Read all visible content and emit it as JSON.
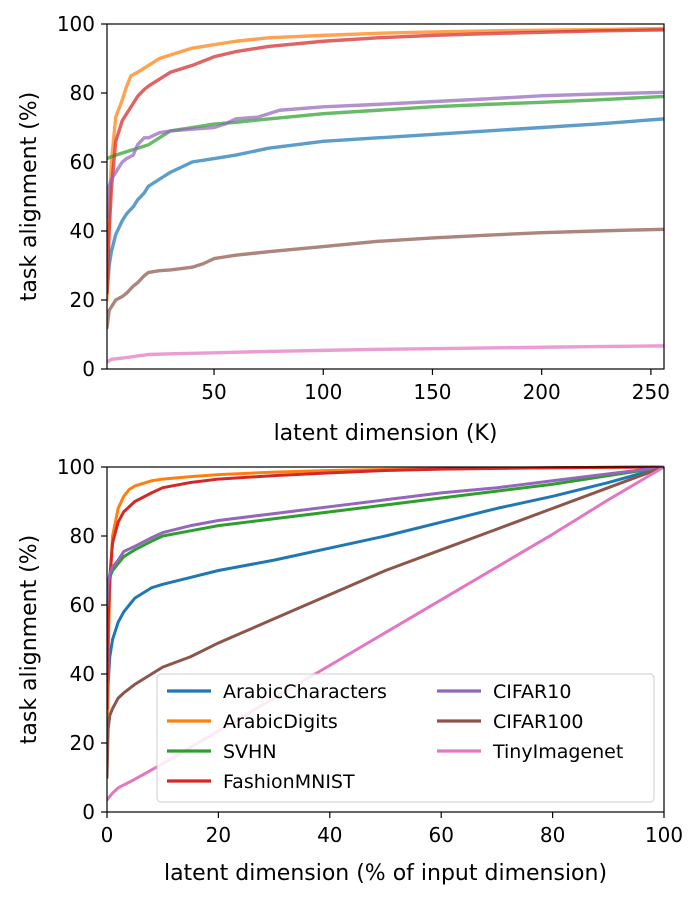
{
  "chart_data": [
    {
      "type": "line",
      "xlabel": "latent dimension (K)",
      "ylabel": "task alignment (%)",
      "xlim": [
        1,
        256
      ],
      "ylim": [
        0,
        100
      ],
      "xticks": [
        50,
        100,
        150,
        200,
        250
      ],
      "yticks": [
        0,
        20,
        40,
        60,
        80,
        100
      ],
      "legend": null,
      "series": [
        {
          "name": "ArabicCharacters",
          "color": "#1f77b4",
          "x": [
            1,
            2,
            3,
            5,
            8,
            10,
            13,
            15,
            18,
            20,
            25,
            30,
            40,
            50,
            60,
            75,
            100,
            125,
            150,
            175,
            200,
            225,
            256
          ],
          "y": [
            22,
            30,
            34,
            39,
            43,
            45,
            47,
            49,
            51,
            53,
            55,
            57,
            60,
            61,
            62,
            64,
            66,
            67,
            68,
            69,
            70,
            71,
            72.5
          ]
        },
        {
          "name": "ArabicDigits",
          "color": "#ff7f0e",
          "x": [
            1,
            2,
            3,
            5,
            8,
            10,
            12,
            15,
            20,
            25,
            30,
            40,
            50,
            60,
            75,
            100,
            125,
            150,
            175,
            200,
            225,
            256
          ],
          "y": [
            20,
            45,
            60,
            73,
            78,
            82,
            85,
            86,
            88,
            90,
            91,
            93,
            94,
            95,
            96,
            96.7,
            97.3,
            97.7,
            98,
            98.2,
            98.4,
            98.7
          ]
        },
        {
          "name": "SVHN",
          "color": "#2ca02c",
          "x": [
            1,
            5,
            10,
            15,
            20,
            25,
            30,
            40,
            50,
            60,
            75,
            100,
            125,
            150,
            175,
            200,
            225,
            256
          ],
          "y": [
            61,
            62,
            63,
            64,
            65,
            67,
            69,
            70,
            71,
            71.5,
            72.5,
            74,
            75,
            76,
            76.7,
            77.3,
            78,
            79
          ]
        },
        {
          "name": "FashionMNIST",
          "color": "#d62728",
          "x": [
            1,
            2,
            3,
            5,
            8,
            10,
            13,
            15,
            18,
            20,
            25,
            30,
            40,
            50,
            60,
            75,
            100,
            125,
            150,
            175,
            200,
            225,
            256
          ],
          "y": [
            22,
            40,
            52,
            66,
            72,
            74,
            77,
            79,
            81,
            82,
            84,
            86,
            88,
            90.5,
            92,
            93.5,
            95,
            96,
            96.7,
            97.2,
            97.6,
            98,
            98.3
          ]
        },
        {
          "name": "CIFAR10",
          "color": "#9467bd",
          "x": [
            1,
            2,
            3,
            5,
            8,
            10,
            13,
            15,
            18,
            20,
            25,
            30,
            40,
            50,
            55,
            60,
            70,
            75,
            80,
            100,
            125,
            150,
            175,
            200,
            225,
            256
          ],
          "y": [
            44,
            53,
            55,
            57,
            60,
            61,
            62,
            65,
            67,
            67,
            68.5,
            69,
            69.5,
            70,
            71,
            72.5,
            73,
            74,
            75,
            76,
            76.7,
            77.5,
            78.3,
            79.2,
            79.7,
            80.2
          ]
        },
        {
          "name": "CIFAR100",
          "color": "#8c564b",
          "x": [
            1,
            2,
            3,
            5,
            8,
            10,
            13,
            15,
            18,
            20,
            25,
            30,
            40,
            45,
            50,
            55,
            60,
            75,
            100,
            125,
            150,
            175,
            200,
            225,
            256
          ],
          "y": [
            12,
            17,
            18,
            20,
            21,
            22,
            24,
            25,
            27,
            28,
            28.5,
            28.7,
            29.5,
            30.5,
            32,
            32.5,
            33,
            34,
            35.5,
            37,
            38,
            38.8,
            39.5,
            40,
            40.5
          ]
        },
        {
          "name": "TinyImagenet",
          "color": "#e377c2",
          "x": [
            1,
            3,
            10,
            15,
            20,
            30,
            50,
            75,
            100,
            125,
            150,
            175,
            200,
            225,
            256
          ],
          "y": [
            2,
            2.8,
            3.3,
            3.8,
            4.2,
            4.4,
            4.7,
            5.1,
            5.4,
            5.7,
            5.9,
            6.1,
            6.3,
            6.5,
            6.7
          ]
        }
      ]
    },
    {
      "type": "line",
      "xlabel": "latent dimension (% of input dimension)",
      "ylabel": "task alignment (%)",
      "xlim": [
        0,
        100
      ],
      "ylim": [
        0,
        100
      ],
      "xticks": [
        0,
        20,
        40,
        60,
        80,
        100
      ],
      "yticks": [
        0,
        20,
        40,
        60,
        80,
        100
      ],
      "legend": "lower-right",
      "series": [
        {
          "name": "ArabicCharacters",
          "color": "#1f77b4",
          "x": [
            0,
            0.2,
            0.5,
            1,
            2,
            3,
            5,
            8,
            10,
            15,
            20,
            30,
            40,
            50,
            60,
            70,
            80,
            90,
            100
          ],
          "y": [
            20,
            37,
            45,
            50,
            55,
            58,
            62,
            65,
            66,
            68,
            70,
            73,
            76.5,
            80,
            84,
            88,
            91.5,
            95.5,
            100
          ]
        },
        {
          "name": "ArabicDigits",
          "color": "#ff7f0e",
          "x": [
            0,
            0.2,
            0.5,
            1,
            2,
            3,
            4,
            5,
            8,
            10,
            15,
            20,
            30,
            40,
            50,
            60,
            80,
            100
          ],
          "y": [
            20,
            45,
            65,
            80,
            88,
            91.5,
            93.5,
            94.5,
            96,
            96.5,
            97.2,
            97.8,
            98.5,
            99,
            99.3,
            99.5,
            99.8,
            100
          ]
        },
        {
          "name": "SVHN",
          "color": "#2ca02c",
          "x": [
            0,
            0.2,
            0.5,
            1,
            2,
            3,
            5,
            8,
            10,
            15,
            20,
            30,
            40,
            50,
            60,
            70,
            80,
            90,
            100
          ],
          "y": [
            60,
            65,
            68,
            70,
            72,
            74,
            76,
            78.5,
            80,
            81.5,
            83,
            85,
            87,
            89,
            91,
            93,
            95,
            97.5,
            100
          ]
        },
        {
          "name": "FashionMNIST",
          "color": "#d62728",
          "x": [
            0,
            0.2,
            0.5,
            1,
            2,
            3,
            5,
            8,
            10,
            15,
            20,
            30,
            40,
            50,
            60,
            80,
            100
          ],
          "y": [
            30,
            55,
            68,
            78,
            84,
            87,
            90,
            92.5,
            94,
            95.5,
            96.5,
            97.5,
            98.3,
            99,
            99.4,
            99.8,
            100
          ]
        },
        {
          "name": "CIFAR10",
          "color": "#9467bd",
          "x": [
            0,
            0.2,
            0.5,
            1,
            2,
            3,
            5,
            8,
            10,
            15,
            20,
            30,
            40,
            50,
            60,
            70,
            80,
            90,
            100
          ],
          "y": [
            60,
            66,
            69,
            71,
            73,
            75.5,
            77,
            79.5,
            81,
            83,
            84.5,
            86.5,
            88.5,
            90.5,
            92.5,
            94,
            96,
            98,
            100
          ]
        },
        {
          "name": "CIFAR100",
          "color": "#8c564b",
          "x": [
            0,
            0.2,
            0.5,
            1,
            2,
            3,
            5,
            8,
            10,
            15,
            20,
            30,
            40,
            50,
            60,
            70,
            80,
            90,
            100
          ],
          "y": [
            10,
            24,
            28,
            30,
            33,
            34.5,
            37,
            40,
            42,
            45,
            49,
            56,
            63,
            70,
            76,
            82,
            88,
            94,
            100
          ]
        },
        {
          "name": "TinyImagenet",
          "color": "#e377c2",
          "x": [
            0,
            1,
            2,
            5,
            10,
            20,
            30,
            40,
            50,
            60,
            70,
            80,
            90,
            100
          ],
          "y": [
            3.5,
            5.5,
            7,
            9.5,
            14,
            23.5,
            33,
            42.5,
            52,
            61.5,
            71,
            80.5,
            90.5,
            100
          ]
        }
      ]
    }
  ]
}
